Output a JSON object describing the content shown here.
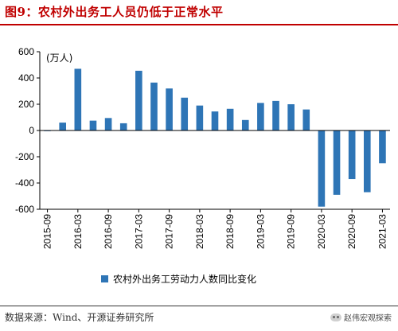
{
  "figure": {
    "title": "图9：农村外出务工人员仍低于正常水平",
    "source": "数据来源：Wind、开源证券研究所",
    "watermark": "赵伟宏观探索",
    "watermark_icon": "wechat-icon"
  },
  "colors": {
    "bar": "#2e75b6",
    "title": "#c00000"
  },
  "chart_data": {
    "type": "bar",
    "unit": "(万人)",
    "ylim": [
      -600,
      600
    ],
    "yticks": [
      -600,
      -400,
      -200,
      0,
      200,
      400,
      600
    ],
    "xticks": [
      "2015-09",
      "2016-03",
      "2016-09",
      "2017-03",
      "2017-09",
      "2018-03",
      "2018-09",
      "2019-03",
      "2019-09",
      "2020-03",
      "2020-09",
      "2021-03"
    ],
    "grid": false,
    "legend_position": "bottom",
    "categories": [
      "2015-09",
      "2015-12",
      "2016-03",
      "2016-06",
      "2016-09",
      "2016-12",
      "2017-03",
      "2017-06",
      "2017-09",
      "2017-12",
      "2018-03",
      "2018-06",
      "2018-09",
      "2018-12",
      "2019-03",
      "2019-06",
      "2019-09",
      "2019-12",
      "2020-03",
      "2020-06",
      "2020-09",
      "2020-12",
      "2021-03"
    ],
    "series": [
      {
        "name": "农村外出务工劳动力人数同比变化",
        "values": [
          -5,
          60,
          470,
          75,
          95,
          55,
          455,
          365,
          320,
          250,
          190,
          145,
          165,
          80,
          210,
          225,
          200,
          160,
          -580,
          -490,
          -370,
          -470,
          -250
        ]
      }
    ]
  }
}
